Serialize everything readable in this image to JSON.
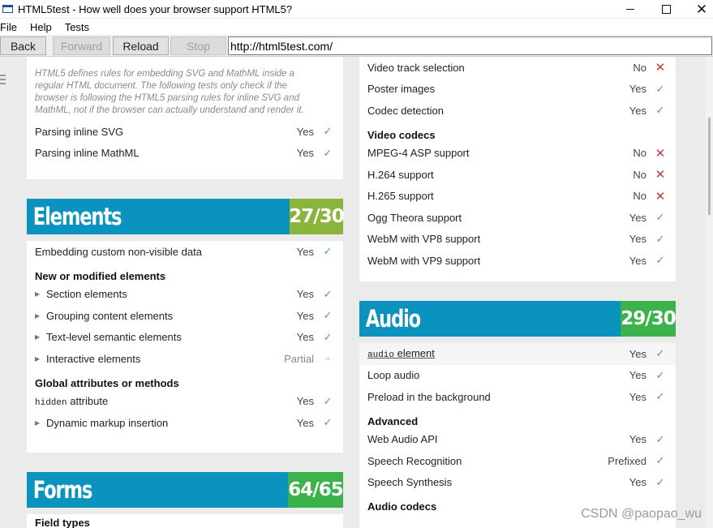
{
  "window": {
    "title": "HTML5test - How well does your browser support HTML5?",
    "minimize": "—",
    "maximize": "☐",
    "close": "✕"
  },
  "menu": [
    "File",
    "Help",
    "Tests"
  ],
  "toolbar": {
    "back": "Back",
    "forward": "Forward",
    "reload": "Reload",
    "stop": "Stop",
    "url": "http://html5test.com/"
  },
  "left": {
    "parsing": {
      "intro": "HTML5 defines rules for embedding SVG and MathML inside a regular HTML document. The following tests only check if the browser is following the HTML5 parsing rules for inline SVG and MathML, not if the browser can actually understand and render it.",
      "rows": [
        {
          "label": "Parsing inline SVG",
          "result": "Yes"
        },
        {
          "label": "Parsing inline MathML",
          "result": "Yes"
        }
      ]
    },
    "elements": {
      "title": "Elements",
      "score": "27/30",
      "row_custom": {
        "label": "Embedding custom non-visible data",
        "result": "Yes"
      },
      "group_new": "New or modified elements",
      "new_rows": [
        {
          "label": "Section elements",
          "result": "Yes"
        },
        {
          "label": "Grouping content elements",
          "result": "Yes"
        },
        {
          "label": "Text-level semantic elements",
          "result": "Yes"
        },
        {
          "label": "Interactive elements",
          "result": "Partial"
        }
      ],
      "group_global": "Global attributes or methods",
      "hidden_code": "hidden",
      "hidden_rest": " attribute",
      "hidden_result": "Yes",
      "dynamic": {
        "label": "Dynamic markup insertion",
        "result": "Yes"
      }
    },
    "forms": {
      "title": "Forms",
      "score": "64/65",
      "group_field": "Field types"
    }
  },
  "right": {
    "video": {
      "rows": [
        {
          "label": "Video track selection",
          "result": "No"
        },
        {
          "label": "Poster images",
          "result": "Yes"
        },
        {
          "label": "Codec detection",
          "result": "Yes"
        }
      ],
      "group_codecs": "Video codecs",
      "codec_rows": [
        {
          "label": "MPEG-4 ASP support",
          "result": "No"
        },
        {
          "label": "H.264 support",
          "result": "No"
        },
        {
          "label": "H.265 support",
          "result": "No"
        },
        {
          "label": "Ogg Theora support",
          "result": "Yes"
        },
        {
          "label": "WebM with VP8 support",
          "result": "Yes"
        },
        {
          "label": "WebM with VP9 support",
          "result": "Yes"
        }
      ]
    },
    "audio": {
      "title": "Audio",
      "score": "29/30",
      "audio_code": "audio",
      "audio_rest": " element",
      "audio_result": "Yes",
      "rows": [
        {
          "label": "Loop audio",
          "result": "Yes"
        },
        {
          "label": "Preload in the background",
          "result": "Yes"
        }
      ],
      "group_advanced": "Advanced",
      "advanced_rows": [
        {
          "label": "Web Audio API",
          "result": "Yes"
        },
        {
          "label": "Speech Recognition",
          "result": "Prefixed"
        },
        {
          "label": "Speech Synthesis",
          "result": "Yes"
        }
      ],
      "group_codecs": "Audio codecs"
    }
  },
  "marks": {
    "yes": "✓",
    "no": "✕",
    "partial": "○"
  },
  "colors": {
    "section_blue": "#0a93be",
    "score_olive": "#8ab43a",
    "score_green": "#3bb34a",
    "yes": "#4aaf4a",
    "no": "#c23b3b"
  },
  "watermark": "CSDN @paopao_wu"
}
